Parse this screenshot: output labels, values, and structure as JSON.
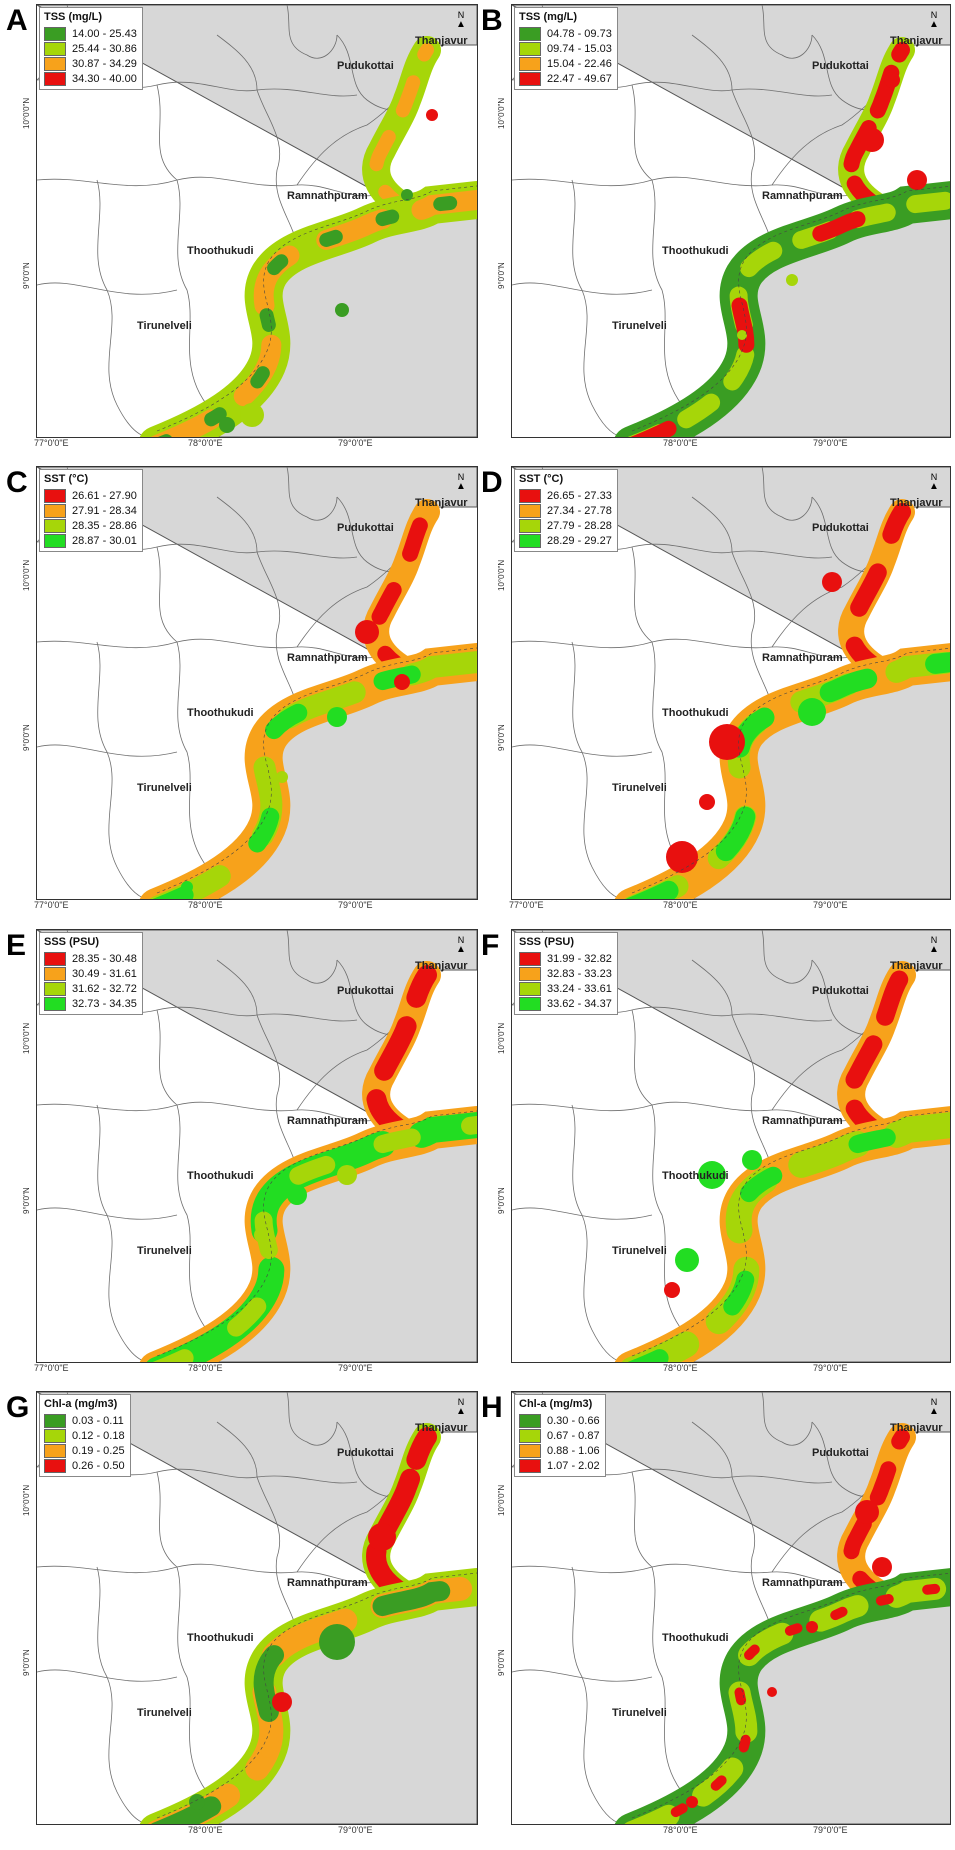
{
  "panels": [
    {
      "letter": "A",
      "legend_title": "TSS (mg/L)",
      "classes": [
        "14.00 - 25.43",
        "25.44 - 30.86",
        "30.87 - 34.29",
        "34.30 - 40.00"
      ],
      "colors": [
        "#3a9d23",
        "#a6d609",
        "#f7a21b",
        "#e8100f"
      ],
      "xticks": [
        "77°0'0\"E",
        "78°0'0\"E",
        "79°0'0\"E"
      ]
    },
    {
      "letter": "B",
      "legend_title": "TSS (mg/L)",
      "classes": [
        "04.78 - 09.73",
        "09.74 - 15.03",
        "15.04 - 22.46",
        "22.47 - 49.67"
      ],
      "colors": [
        "#3a9d23",
        "#a6d609",
        "#f7a21b",
        "#e8100f"
      ],
      "xticks": [
        "",
        "78°0'0\"E",
        "79°0'0\"E"
      ]
    },
    {
      "letter": "C",
      "legend_title": "SST (°C)",
      "classes": [
        "26.61 - 27.90",
        "27.91 - 28.34",
        "28.35 - 28.86",
        "28.87 - 30.01"
      ],
      "colors": [
        "#e8100f",
        "#f7a21b",
        "#a6d609",
        "#22dd22"
      ],
      "xticks": [
        "77°0'0\"E",
        "78°0'0\"E",
        "79°0'0\"E"
      ]
    },
    {
      "letter": "D",
      "legend_title": "SST (°C)",
      "classes": [
        "26.65 - 27.33",
        "27.34 - 27.78",
        "27.79 - 28.28",
        "28.29 - 29.27"
      ],
      "colors": [
        "#e8100f",
        "#f7a21b",
        "#a6d609",
        "#22dd22"
      ],
      "xticks": [
        "77°0'0\"E",
        "78°0'0\"E",
        "79°0'0\"E"
      ]
    },
    {
      "letter": "E",
      "legend_title": "SSS (PSU)",
      "classes": [
        "28.35 - 30.48",
        "30.49 - 31.61",
        "31.62 - 32.72",
        "32.73 - 34.35"
      ],
      "colors": [
        "#e8100f",
        "#f7a21b",
        "#a6d609",
        "#22dd22"
      ],
      "xticks": [
        "77°0'0\"E",
        "78°0'0\"E",
        "79°0'0\"E"
      ]
    },
    {
      "letter": "F",
      "legend_title": "SSS (PSU)",
      "classes": [
        "31.99 - 32.82",
        "32.83 - 33.23",
        "33.24 - 33.61",
        "33.62 - 34.37"
      ],
      "colors": [
        "#e8100f",
        "#f7a21b",
        "#a6d609",
        "#22dd22"
      ],
      "xticks": [
        "",
        "78°0'0\"E",
        "79°0'0\"E"
      ]
    },
    {
      "letter": "G",
      "legend_title": "Chl-a (mg/m3)",
      "classes": [
        "0.03 - 0.11",
        "0.12 - 0.18",
        "0.19 - 0.25",
        "0.26 - 0.50"
      ],
      "colors": [
        "#3a9d23",
        "#a6d609",
        "#f7a21b",
        "#e8100f"
      ],
      "xticks": [
        "",
        "78°0'0\"E",
        "79°0'0\"E"
      ]
    },
    {
      "letter": "H",
      "legend_title": "Chl-a (mg/m3)",
      "classes": [
        "0.30 - 0.66",
        "0.67 - 0.87",
        "0.88 - 1.06",
        "1.07 - 2.02"
      ],
      "colors": [
        "#3a9d23",
        "#a6d609",
        "#f7a21b",
        "#e8100f"
      ],
      "xticks": [
        "",
        "78°0'0\"E",
        "79°0'0\"E"
      ]
    }
  ],
  "places": {
    "thanjavur": "Thanjavur",
    "pudukottai": "Pudukottai",
    "ramnathpuram": "Ramnathpuram",
    "thoothukudi": "Thoothukudi",
    "tirunelveli": "Tirunelveli"
  },
  "yticks": {
    "n10": "10°0'0\"N",
    "n9": "9°0'0\"N"
  },
  "north_label": "N",
  "land_color": "#d7d7d7",
  "border_color": "#6e6e6e"
}
